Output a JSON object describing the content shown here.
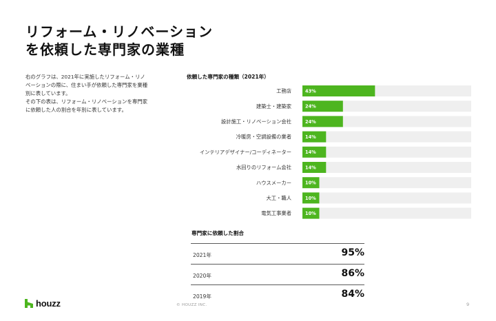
{
  "title": {
    "line1": "リフォーム・リノベーション",
    "line2": "を依頼した専門家の業種"
  },
  "description": {
    "line1": "右のグラフは、2021年に実施したリフォーム・リノ",
    "line2": "ベーションの際に、住まい手が依頼した専門家を業種",
    "line3": "別に表しています。",
    "line4": "その下の表は、リフォーム・リノベーションを専門家",
    "line5": "に依頼した人の割合を年別に表しています。"
  },
  "colors": {
    "bar": "#4db51f",
    "track": "#efefef",
    "label": "#333333",
    "bar_value_text": "#ffffff"
  },
  "chart_data": {
    "type": "bar",
    "orientation": "horizontal",
    "title": "依頼した専門家の種類（2021年）",
    "categories": [
      "工務店",
      "建築士・建築家",
      "設計施工・リノベーション会社",
      "冷暖房・空調設備の業者",
      "インテリアデザイナー/コーディネーター",
      "水回りのリフォーム会社",
      "ハウスメーカー",
      "大工・職人",
      "電気工事業者"
    ],
    "values": [
      43,
      24,
      24,
      14,
      14,
      14,
      10,
      10,
      10
    ],
    "value_labels": [
      "43%",
      "24%",
      "24%",
      "14%",
      "14%",
      "14%",
      "10%",
      "10%",
      "10%"
    ],
    "xlim": [
      0,
      100
    ],
    "grid": false,
    "legend": "none"
  },
  "table": {
    "title": "専門家に依頼した割合",
    "rows": [
      {
        "year": "2021年",
        "value": "95%"
      },
      {
        "year": "2020年",
        "value": "86%"
      },
      {
        "year": "2019年",
        "value": "84%"
      }
    ]
  },
  "footer": {
    "brand": "houzz",
    "logo_icon": "houzz-logo-icon",
    "copyright": "© HOUZZ INC.",
    "page_number": "9"
  }
}
